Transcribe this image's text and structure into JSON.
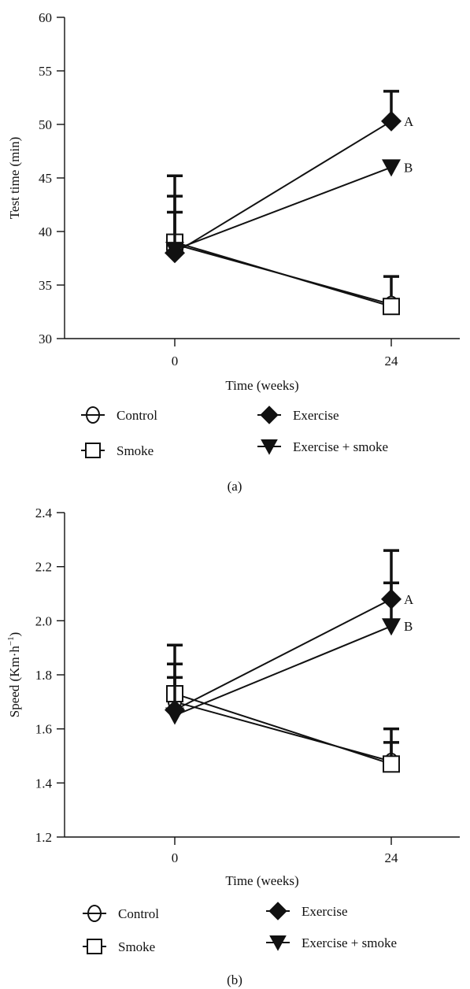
{
  "chart_data": [
    {
      "type": "line",
      "panel_label": "(a)",
      "xlabel": "Time (weeks)",
      "ylabel": "Test time (min)",
      "x_ticks": [
        "0",
        "24"
      ],
      "ylim": [
        30,
        60
      ],
      "y_ticks": [
        30,
        35,
        40,
        45,
        50,
        55,
        60
      ],
      "y_tick_labels": [
        "30",
        "35",
        "40",
        "45",
        "50",
        "55",
        "60"
      ],
      "grid": false,
      "legend_position": "bottom",
      "series": [
        {
          "name": "Control",
          "marker": "circle-bar",
          "x": [
            "0",
            "24"
          ],
          "values": [
            38.8,
            33.2
          ],
          "error": [
            3.0,
            2.6
          ]
        },
        {
          "name": "Smoke",
          "marker": "square",
          "x": [
            "0",
            "24"
          ],
          "values": [
            39.0,
            33.0
          ],
          "error": [
            4.3,
            0
          ]
        },
        {
          "name": "Exercise",
          "marker": "diamond",
          "x": [
            "0",
            "24"
          ],
          "values": [
            38.0,
            50.3
          ],
          "error": [
            7.2,
            2.8
          ],
          "label_24": "A"
        },
        {
          "name": "Exercise + smoke",
          "marker": "triangle-down",
          "x": [
            "0",
            "24"
          ],
          "values": [
            38.3,
            46.0
          ],
          "error": [
            0,
            0
          ],
          "label_24": "B"
        }
      ]
    },
    {
      "type": "line",
      "panel_label": "(b)",
      "xlabel": "Time (weeks)",
      "ylabel": "Speed (Km·h",
      "ylabel_sup": "−1",
      "ylabel_close": ")",
      "x_ticks": [
        "0",
        "24"
      ],
      "ylim": [
        1.2,
        2.4
      ],
      "y_ticks": [
        1.2,
        1.4,
        1.6,
        1.8,
        2.0,
        2.2,
        2.4
      ],
      "y_tick_labels": [
        "1.2",
        "1.4",
        "1.6",
        "1.8",
        "2.0",
        "2.2",
        "2.4"
      ],
      "grid": false,
      "legend_position": "bottom",
      "series": [
        {
          "name": "Control",
          "marker": "circle-bar",
          "x": [
            "0",
            "24"
          ],
          "values": [
            1.7,
            1.48
          ],
          "error": [
            0.09,
            0.07
          ]
        },
        {
          "name": "Smoke",
          "marker": "square",
          "x": [
            "0",
            "24"
          ],
          "values": [
            1.73,
            1.47
          ],
          "error": [
            0.11,
            0.13
          ]
        },
        {
          "name": "Exercise",
          "marker": "diamond",
          "x": [
            "0",
            "24"
          ],
          "values": [
            1.67,
            2.08
          ],
          "error": [
            0.24,
            0.18
          ],
          "label_24": "A"
        },
        {
          "name": "Exercise + smoke",
          "marker": "triangle-down",
          "x": [
            "0",
            "24"
          ],
          "values": [
            1.65,
            1.98
          ],
          "error": [
            0,
            0.16
          ],
          "label_24": "B"
        }
      ]
    }
  ]
}
